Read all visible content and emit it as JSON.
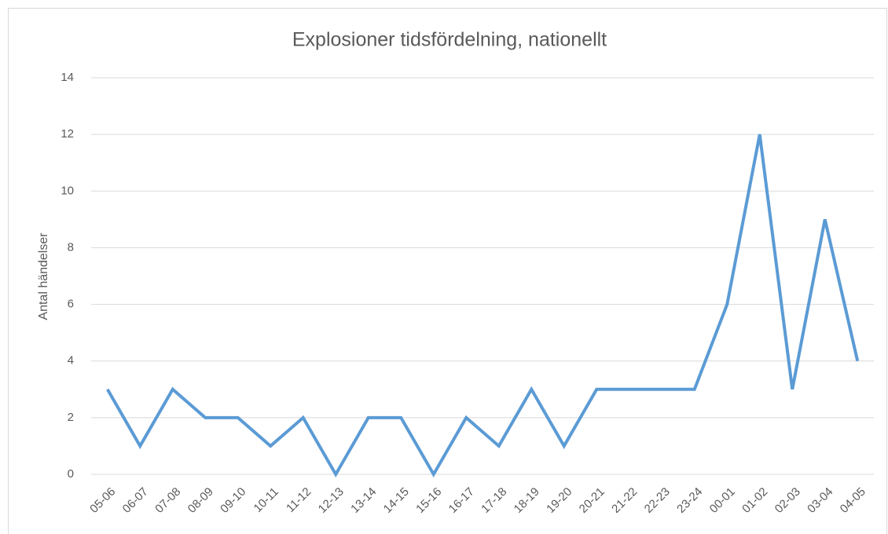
{
  "chart_data": {
    "type": "line",
    "title": "Explosioner tidsfördelning, nationellt",
    "y_label": "Antal händelser",
    "categories": [
      "05-06",
      "06-07",
      "07-08",
      "08-09",
      "09-10",
      "10-11",
      "11-12",
      "12-13",
      "13-14",
      "14-15",
      "15-16",
      "16-17",
      "17-18",
      "18-19",
      "19-20",
      "20-21",
      "21-22",
      "22-23",
      "23-24",
      "00-01",
      "01-02",
      "02-03",
      "03-04",
      "04-05"
    ],
    "values": [
      3,
      1,
      3,
      2,
      2,
      1,
      2,
      0,
      2,
      2,
      0,
      2,
      1,
      3,
      1,
      3,
      3,
      3,
      3,
      6,
      12,
      3,
      9,
      4
    ],
    "color": "#5b9bd5",
    "ylim": [
      0,
      14
    ],
    "yticks": [
      0,
      2,
      4,
      6,
      8,
      10,
      12,
      14
    ],
    "grid": true
  }
}
